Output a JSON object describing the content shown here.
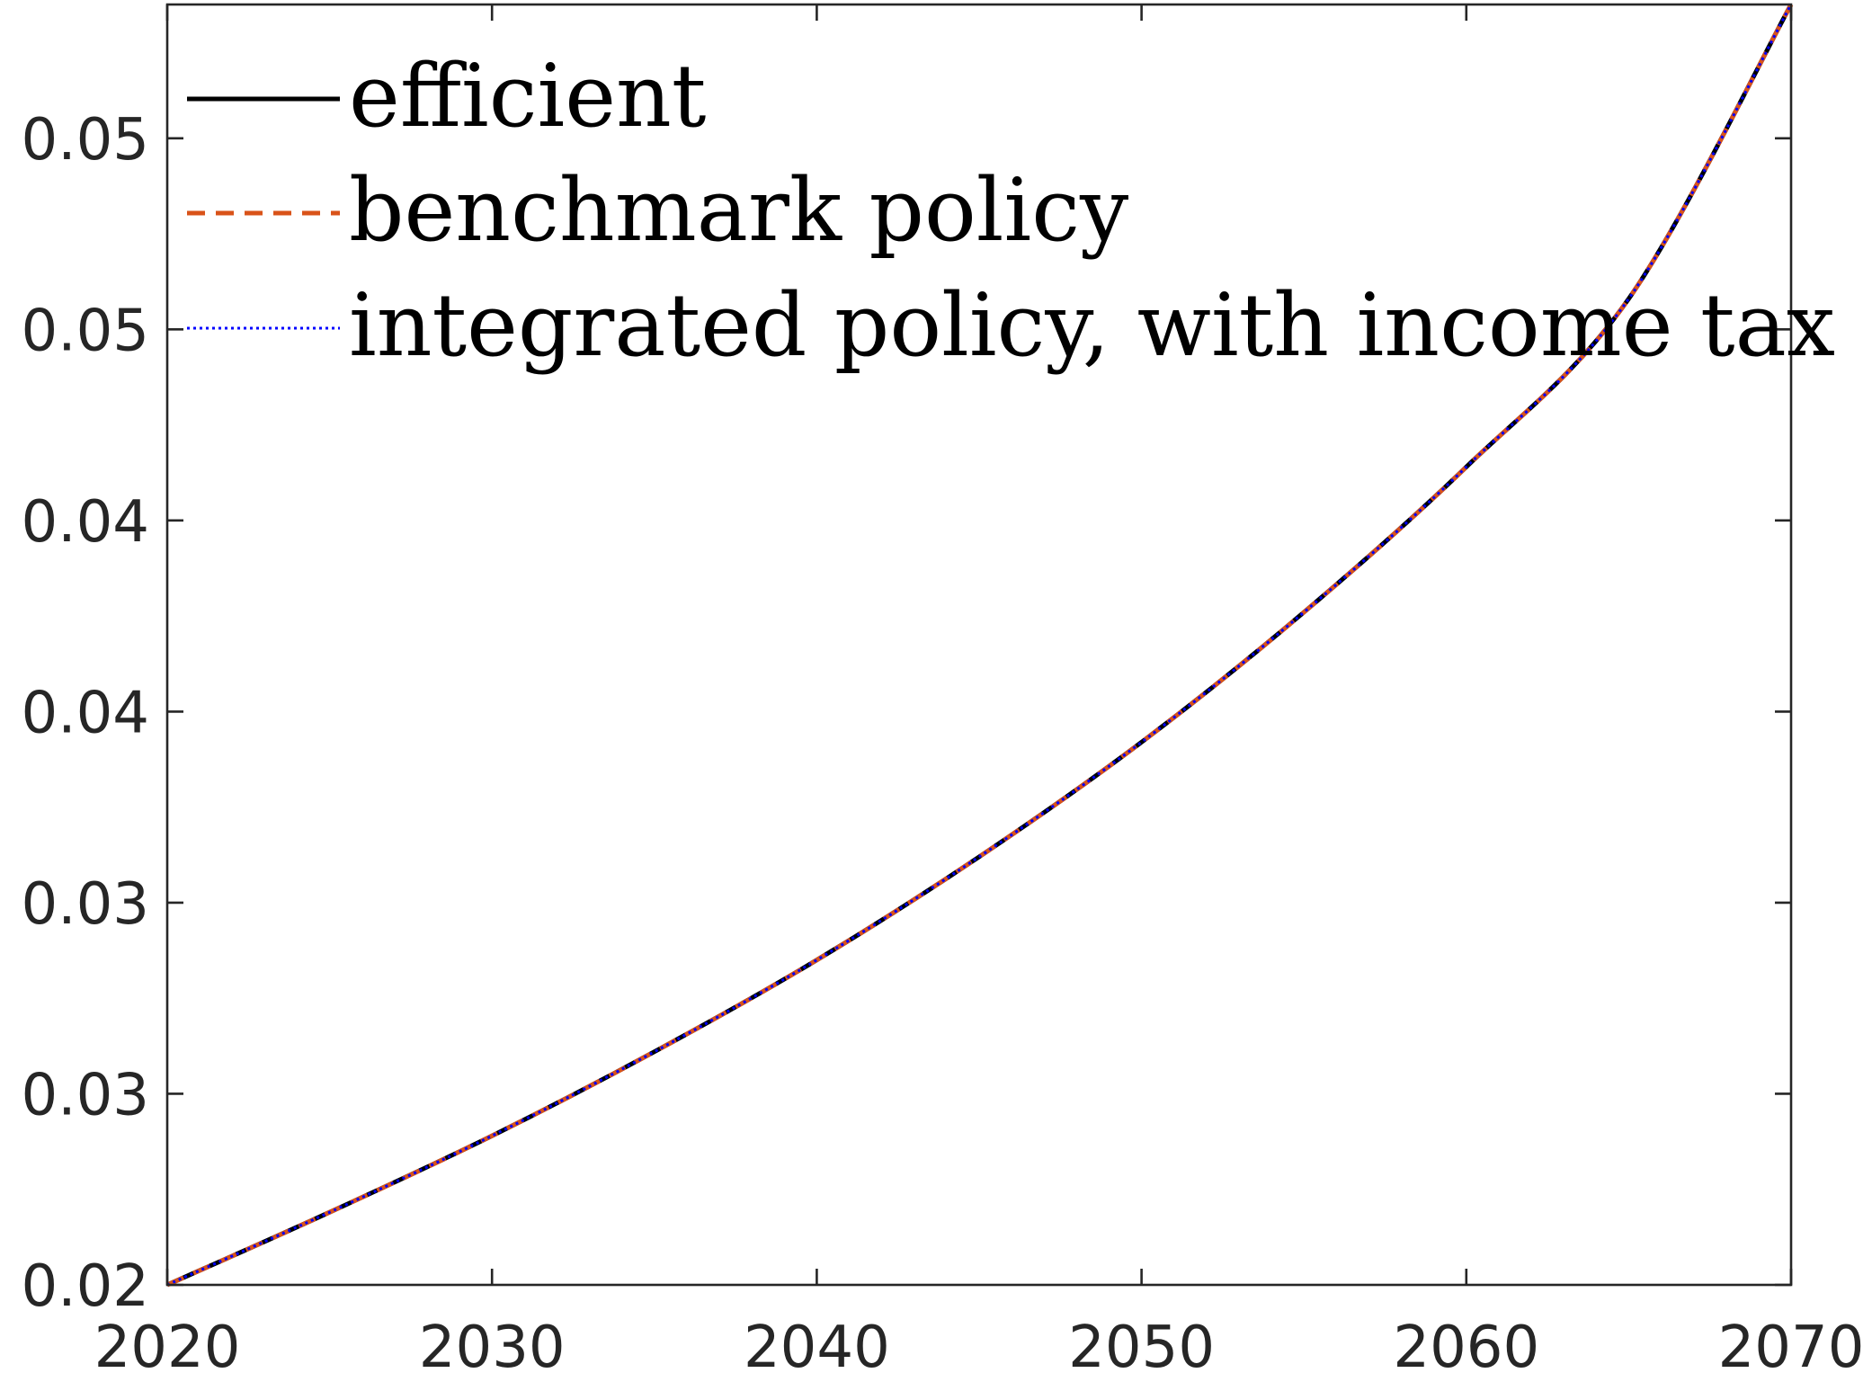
{
  "chart_data": {
    "type": "line",
    "title": "",
    "xlabel": "",
    "ylabel": "",
    "xlim": [
      2020,
      2070
    ],
    "ylim": [
      0.02,
      0.0535
    ],
    "grid": false,
    "legend_position": "top-left",
    "x_ticks": [
      2020,
      2030,
      2040,
      2050,
      2060,
      2070
    ],
    "x_tick_labels": [
      "2020",
      "2030",
      "2040",
      "2050",
      "2060",
      "2070"
    ],
    "y_ticks": [
      0.02,
      0.025,
      0.03,
      0.035,
      0.04,
      0.045,
      0.05
    ],
    "y_tick_labels": [
      "0.02",
      "0.03",
      "0.03",
      "0.04",
      "0.04",
      "0.05",
      "0.05"
    ],
    "x": [
      2020,
      2025,
      2030,
      2035,
      2040,
      2045,
      2050,
      2055,
      2060,
      2065,
      2070
    ],
    "series": [
      {
        "name": "efficient",
        "color": "#000000",
        "style": "solid",
        "values": [
          0.02,
          0.0219,
          0.0239,
          0.0261,
          0.0285,
          0.0312,
          0.0342,
          0.0376,
          0.0414,
          0.0458,
          0.0535
        ]
      },
      {
        "name": "benchmark policy",
        "color": "#d95319",
        "style": "dashed",
        "values": [
          0.02,
          0.0219,
          0.0239,
          0.0261,
          0.0285,
          0.0312,
          0.0342,
          0.0376,
          0.0414,
          0.0458,
          0.0535
        ]
      },
      {
        "name": "integrated policy, with income tax",
        "color": "#0000ff",
        "style": "dotted",
        "values": [
          0.02,
          0.0219,
          0.0239,
          0.0261,
          0.0285,
          0.0312,
          0.0342,
          0.0376,
          0.0414,
          0.0458,
          0.0535
        ]
      }
    ]
  }
}
